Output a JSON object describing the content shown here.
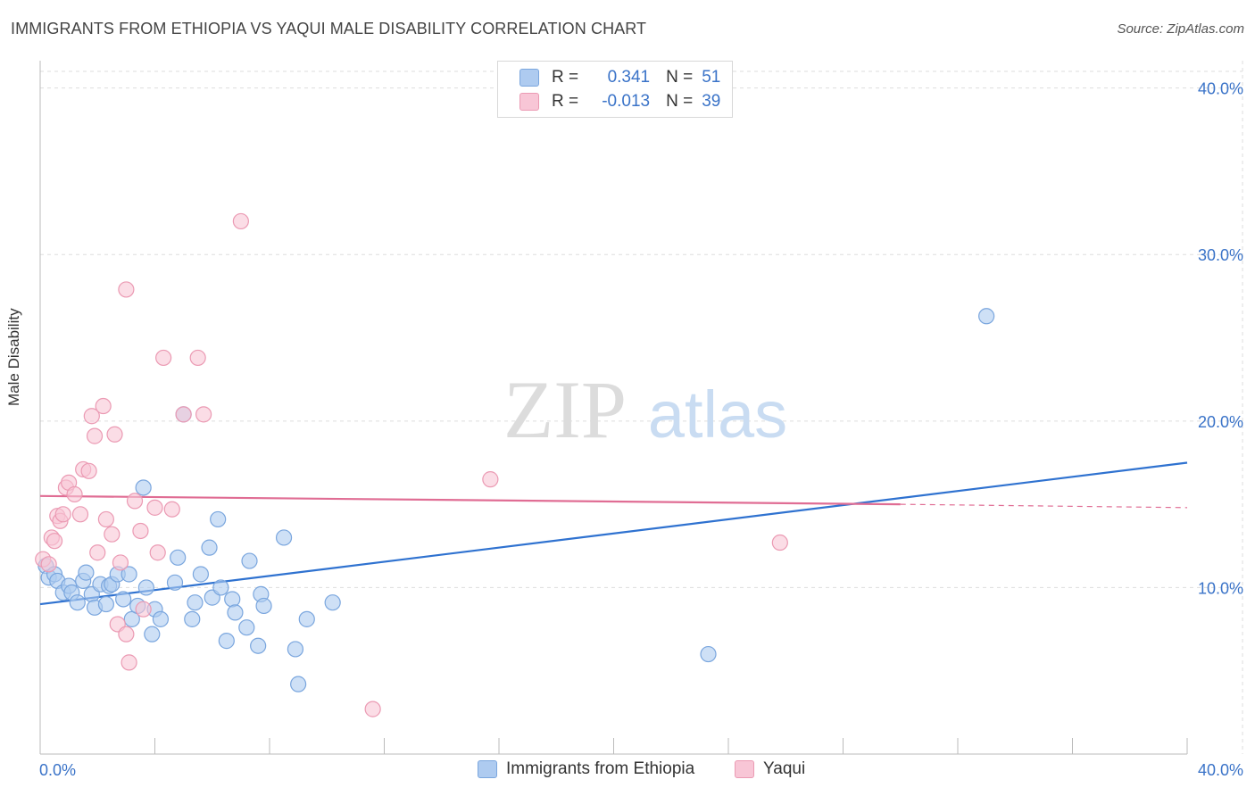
{
  "title": "IMMIGRANTS FROM ETHIOPIA VS YAQUI MALE DISABILITY CORRELATION CHART",
  "source": "Source: ZipAtlas.com",
  "legend": {
    "rows": [
      {
        "r_label": "R =",
        "r_value": "0.341",
        "n_label": "N =",
        "n_value": "51"
      },
      {
        "r_label": "R =",
        "r_value": "-0.013",
        "n_label": "N =",
        "n_value": "39"
      }
    ]
  },
  "colors": {
    "blue_fill": "#aecbf0",
    "blue_stroke": "#7aa6de",
    "blue_line": "#2f72d0",
    "pink_fill": "#f8c6d6",
    "pink_stroke": "#eb9ab3",
    "pink_line": "#e06d94",
    "axis_label": "#3a73c8"
  },
  "chart_data": {
    "type": "scatter",
    "title": "IMMIGRANTS FROM ETHIOPIA VS YAQUI MALE DISABILITY CORRELATION CHART",
    "xlabel": "",
    "ylabel": "Male Disability",
    "xlim": [
      0,
      40
    ],
    "ylim": [
      0,
      41
    ],
    "x_tick_labels": [
      "0.0%",
      "40.0%"
    ],
    "y_ticks": [
      10,
      20,
      30,
      40
    ],
    "y_tick_labels": [
      "10.0%",
      "20.0%",
      "30.0%",
      "40.0%"
    ],
    "watermark": "ZIPatlas",
    "series": [
      {
        "name": "Immigrants from Ethiopia",
        "color": "#aecbf0",
        "r": 0.341,
        "n": 51,
        "trend": {
          "x0": 0,
          "y0": 9.0,
          "x1": 40,
          "y1": 17.5
        },
        "points": [
          [
            0.2,
            11.3
          ],
          [
            0.3,
            10.6
          ],
          [
            0.5,
            10.8
          ],
          [
            0.6,
            10.4
          ],
          [
            0.8,
            9.7
          ],
          [
            1.0,
            10.1
          ],
          [
            1.1,
            9.7
          ],
          [
            1.3,
            9.1
          ],
          [
            1.5,
            10.4
          ],
          [
            1.6,
            10.9
          ],
          [
            1.8,
            9.6
          ],
          [
            1.9,
            8.8
          ],
          [
            2.1,
            10.2
          ],
          [
            2.3,
            9.0
          ],
          [
            2.4,
            10.1
          ],
          [
            2.5,
            10.2
          ],
          [
            2.7,
            10.8
          ],
          [
            2.9,
            9.3
          ],
          [
            3.1,
            10.8
          ],
          [
            3.2,
            8.1
          ],
          [
            3.4,
            8.9
          ],
          [
            3.6,
            16.0
          ],
          [
            3.7,
            10.0
          ],
          [
            3.9,
            7.2
          ],
          [
            4.0,
            8.7
          ],
          [
            4.2,
            8.1
          ],
          [
            4.7,
            10.3
          ],
          [
            4.8,
            11.8
          ],
          [
            5.0,
            20.4
          ],
          [
            5.3,
            8.1
          ],
          [
            5.4,
            9.1
          ],
          [
            5.6,
            10.8
          ],
          [
            5.9,
            12.4
          ],
          [
            6.0,
            9.4
          ],
          [
            6.2,
            14.1
          ],
          [
            6.3,
            10.0
          ],
          [
            6.5,
            6.8
          ],
          [
            6.7,
            9.3
          ],
          [
            6.8,
            8.5
          ],
          [
            7.2,
            7.6
          ],
          [
            7.3,
            11.6
          ],
          [
            7.6,
            6.5
          ],
          [
            7.7,
            9.6
          ],
          [
            7.8,
            8.9
          ],
          [
            8.5,
            13.0
          ],
          [
            8.9,
            6.3
          ],
          [
            9.0,
            4.2
          ],
          [
            9.3,
            8.1
          ],
          [
            10.2,
            9.1
          ],
          [
            23.3,
            6.0
          ],
          [
            33.0,
            26.3
          ]
        ]
      },
      {
        "name": "Yaqui",
        "color": "#f8c6d6",
        "r": -0.013,
        "n": 39,
        "trend": {
          "x0": 0,
          "y0": 15.5,
          "x1": 30,
          "y1": 15.0,
          "dash_to": 40,
          "dash_y": 14.8
        },
        "points": [
          [
            0.1,
            11.7
          ],
          [
            0.3,
            11.4
          ],
          [
            0.4,
            13.0
          ],
          [
            0.5,
            12.8
          ],
          [
            0.6,
            14.3
          ],
          [
            0.7,
            14.0
          ],
          [
            0.8,
            14.4
          ],
          [
            0.9,
            16.0
          ],
          [
            1.0,
            16.3
          ],
          [
            1.2,
            15.6
          ],
          [
            1.4,
            14.4
          ],
          [
            1.5,
            17.1
          ],
          [
            1.7,
            17.0
          ],
          [
            1.8,
            20.3
          ],
          [
            1.9,
            19.1
          ],
          [
            2.0,
            12.1
          ],
          [
            2.2,
            20.9
          ],
          [
            2.3,
            14.1
          ],
          [
            2.5,
            13.2
          ],
          [
            2.6,
            19.2
          ],
          [
            2.7,
            7.8
          ],
          [
            2.8,
            11.5
          ],
          [
            3.0,
            7.2
          ],
          [
            3.0,
            27.9
          ],
          [
            3.1,
            5.5
          ],
          [
            3.3,
            15.2
          ],
          [
            3.5,
            13.4
          ],
          [
            3.6,
            8.7
          ],
          [
            4.0,
            14.8
          ],
          [
            4.1,
            12.1
          ],
          [
            4.3,
            23.8
          ],
          [
            4.6,
            14.7
          ],
          [
            5.0,
            20.4
          ],
          [
            5.5,
            23.8
          ],
          [
            5.7,
            20.4
          ],
          [
            7.0,
            32.0
          ],
          [
            11.6,
            2.7
          ],
          [
            15.7,
            16.5
          ],
          [
            25.8,
            12.7
          ]
        ]
      }
    ]
  }
}
